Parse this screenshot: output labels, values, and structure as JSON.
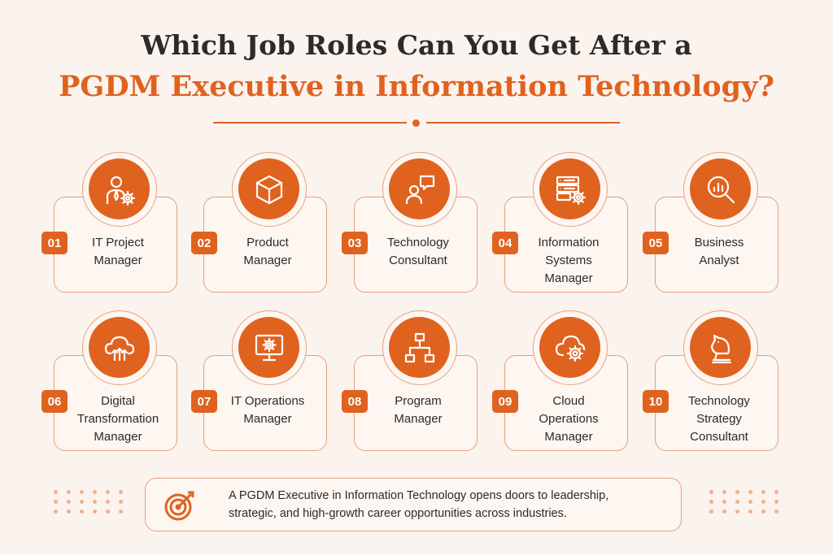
{
  "title": {
    "line1": "Which Job Roles Can You Get After a",
    "line2": "PGDM Executive in Information Technology?"
  },
  "roles": [
    {
      "number": "01",
      "label_lines": [
        "IT Project",
        "Manager"
      ],
      "icon": "manager-gear-icon"
    },
    {
      "number": "02",
      "label_lines": [
        "Product",
        "Manager"
      ],
      "icon": "cube-icon"
    },
    {
      "number": "03",
      "label_lines": [
        "Technology",
        "Consultant"
      ],
      "icon": "person-chat-icon"
    },
    {
      "number": "04",
      "label_lines": [
        "Information",
        "Systems",
        "Manager"
      ],
      "icon": "server-gear-icon"
    },
    {
      "number": "05",
      "label_lines": [
        "Business",
        "Analyst"
      ],
      "icon": "magnifier-chart-icon"
    },
    {
      "number": "06",
      "label_lines": [
        "Digital",
        "Transformation",
        "Manager"
      ],
      "icon": "cloud-arrows-icon"
    },
    {
      "number": "07",
      "label_lines": [
        "IT Operations",
        "Manager"
      ],
      "icon": "monitor-gear-icon"
    },
    {
      "number": "08",
      "label_lines": [
        "Program",
        "Manager"
      ],
      "icon": "hierarchy-icon"
    },
    {
      "number": "09",
      "label_lines": [
        "Cloud",
        "Operations",
        "Manager"
      ],
      "icon": "cloud-gear-icon"
    },
    {
      "number": "10",
      "label_lines": [
        "Technology",
        "Strategy",
        "Consultant"
      ],
      "icon": "chess-knight-icon"
    }
  ],
  "footer": {
    "icon": "target-arrow-icon",
    "text_line1": "A PGDM Executive in Information Technology opens doors to leadership,",
    "text_line2": "strategic, and high-growth career opportunities across industries."
  },
  "colors": {
    "accent": "#e0621f",
    "border": "#e8a079",
    "background": "#fbf3ee",
    "text": "#2b2b2b"
  }
}
